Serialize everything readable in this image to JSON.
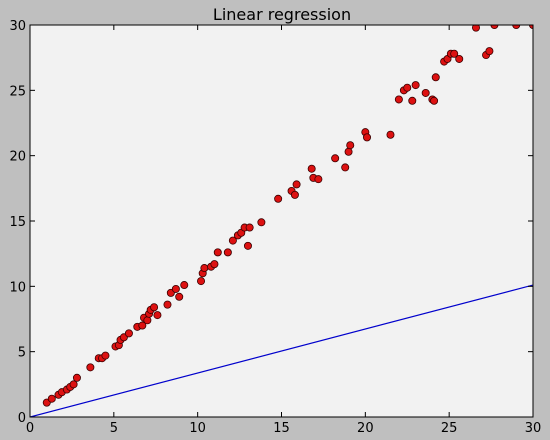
{
  "chart_data": {
    "type": "scatter",
    "title": "Linear regression",
    "xlabel": "",
    "ylabel": "",
    "xlim": [
      0,
      30
    ],
    "ylim": [
      0,
      30
    ],
    "xticks": [
      0,
      5,
      10,
      15,
      20,
      25,
      30
    ],
    "yticks": [
      0,
      5,
      10,
      15,
      20,
      25,
      30
    ],
    "grid": false,
    "colors": {
      "figure_background": "#bfbfbf",
      "plot_background": "#f2f2f2",
      "points": "#dd1111",
      "points_edge": "#3a0000",
      "line": "#0000cc"
    },
    "series": [
      {
        "type": "scatter",
        "x": [
          1.0,
          1.3,
          1.7,
          1.9,
          2.2,
          2.4,
          2.6,
          2.8,
          3.6,
          4.1,
          4.3,
          4.5,
          5.1,
          5.3,
          5.4,
          5.6,
          5.9,
          6.4,
          6.7,
          6.8,
          7.0,
          7.1,
          7.2,
          7.4,
          7.6,
          8.2,
          8.4,
          8.7,
          8.9,
          9.2,
          10.2,
          10.3,
          10.4,
          10.8,
          11.0,
          11.2,
          11.8,
          12.1,
          12.4,
          12.6,
          12.8,
          13.0,
          13.1,
          13.8,
          14.8,
          15.6,
          15.8,
          15.9,
          16.8,
          16.9,
          17.2,
          18.2,
          18.8,
          19.0,
          19.1,
          20.0,
          20.1,
          21.5,
          22.0,
          22.3,
          22.5,
          22.8,
          23.0,
          23.6,
          24.0,
          24.1,
          24.2,
          24.7,
          24.9,
          25.1,
          25.3,
          25.6,
          26.6,
          27.2,
          27.4,
          27.7,
          29.0,
          30.0
        ],
        "y": [
          1.1,
          1.4,
          1.7,
          1.9,
          2.1,
          2.3,
          2.5,
          3.0,
          3.8,
          4.5,
          4.5,
          4.7,
          5.4,
          5.5,
          5.9,
          6.1,
          6.4,
          6.9,
          7.0,
          7.6,
          7.4,
          7.9,
          8.2,
          8.4,
          7.8,
          8.6,
          9.5,
          9.8,
          9.2,
          10.1,
          10.4,
          11.0,
          11.4,
          11.5,
          11.7,
          12.6,
          12.6,
          13.5,
          13.9,
          14.1,
          14.5,
          13.1,
          14.5,
          14.9,
          16.7,
          17.3,
          17.0,
          17.8,
          19.0,
          18.3,
          18.2,
          19.8,
          19.1,
          20.3,
          20.8,
          21.8,
          21.4,
          21.6,
          24.3,
          25.0,
          25.2,
          24.2,
          25.4,
          24.8,
          24.3,
          24.2,
          26.0,
          27.2,
          27.4,
          27.8,
          27.8,
          27.4,
          29.8,
          27.7,
          28.0,
          30.0,
          30.0,
          30.0
        ]
      },
      {
        "type": "line",
        "x": [
          0,
          30
        ],
        "y": [
          0,
          10.1
        ]
      }
    ]
  }
}
